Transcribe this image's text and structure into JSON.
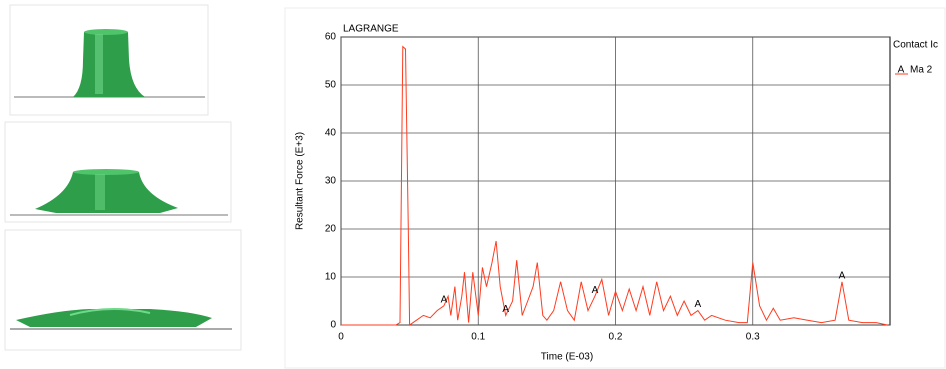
{
  "chart_data": {
    "type": "line",
    "title": "LAGRANGE",
    "x_label": "Time (E-03)",
    "y_label": "Resultant Force (E+3)",
    "legend_title": "Contact Ic",
    "x": [
      0,
      0.04,
      0.043,
      0.045,
      0.047,
      0.049,
      0.05,
      0.055,
      0.06,
      0.065,
      0.07,
      0.075,
      0.078,
      0.08,
      0.083,
      0.085,
      0.088,
      0.09,
      0.093,
      0.096,
      0.1,
      0.103,
      0.106,
      0.11,
      0.113,
      0.116,
      0.12,
      0.125,
      0.128,
      0.132,
      0.136,
      0.14,
      0.143,
      0.147,
      0.15,
      0.155,
      0.16,
      0.165,
      0.17,
      0.175,
      0.18,
      0.185,
      0.19,
      0.195,
      0.2,
      0.205,
      0.21,
      0.215,
      0.22,
      0.225,
      0.23,
      0.235,
      0.24,
      0.245,
      0.25,
      0.255,
      0.26,
      0.265,
      0.27,
      0.28,
      0.29,
      0.296,
      0.3,
      0.305,
      0.31,
      0.315,
      0.32,
      0.33,
      0.34,
      0.35,
      0.36,
      0.365,
      0.37,
      0.38,
      0.39,
      0.398
    ],
    "series": [
      {
        "name": "Ma 2",
        "marker": "A",
        "color": "#ff3b1f",
        "values": [
          0,
          0,
          0.5,
          58,
          57.5,
          20,
          0,
          1,
          2,
          1.5,
          3,
          4,
          6,
          2,
          8,
          1,
          6,
          11,
          0.5,
          11,
          2,
          12,
          8,
          13,
          17.5,
          8,
          2,
          5,
          13.5,
          2,
          5,
          8,
          13,
          2,
          1,
          3,
          9,
          3,
          1,
          9,
          3,
          6,
          9.5,
          2,
          7,
          3,
          7.5,
          3,
          8,
          2,
          9,
          3,
          6,
          2,
          5,
          2,
          3,
          1,
          2,
          1,
          0.5,
          0.5,
          13,
          4,
          1,
          3.5,
          1,
          1.5,
          1,
          0.5,
          1,
          9,
          1,
          0.5,
          0.5,
          0
        ]
      }
    ],
    "xlim": [
      0,
      0.4
    ],
    "xticks": [
      0,
      0.1,
      0.2,
      0.3
    ],
    "ylim": [
      0,
      60
    ],
    "yticks": [
      0,
      10,
      20,
      30,
      40,
      50,
      60
    ],
    "grid": true
  }
}
